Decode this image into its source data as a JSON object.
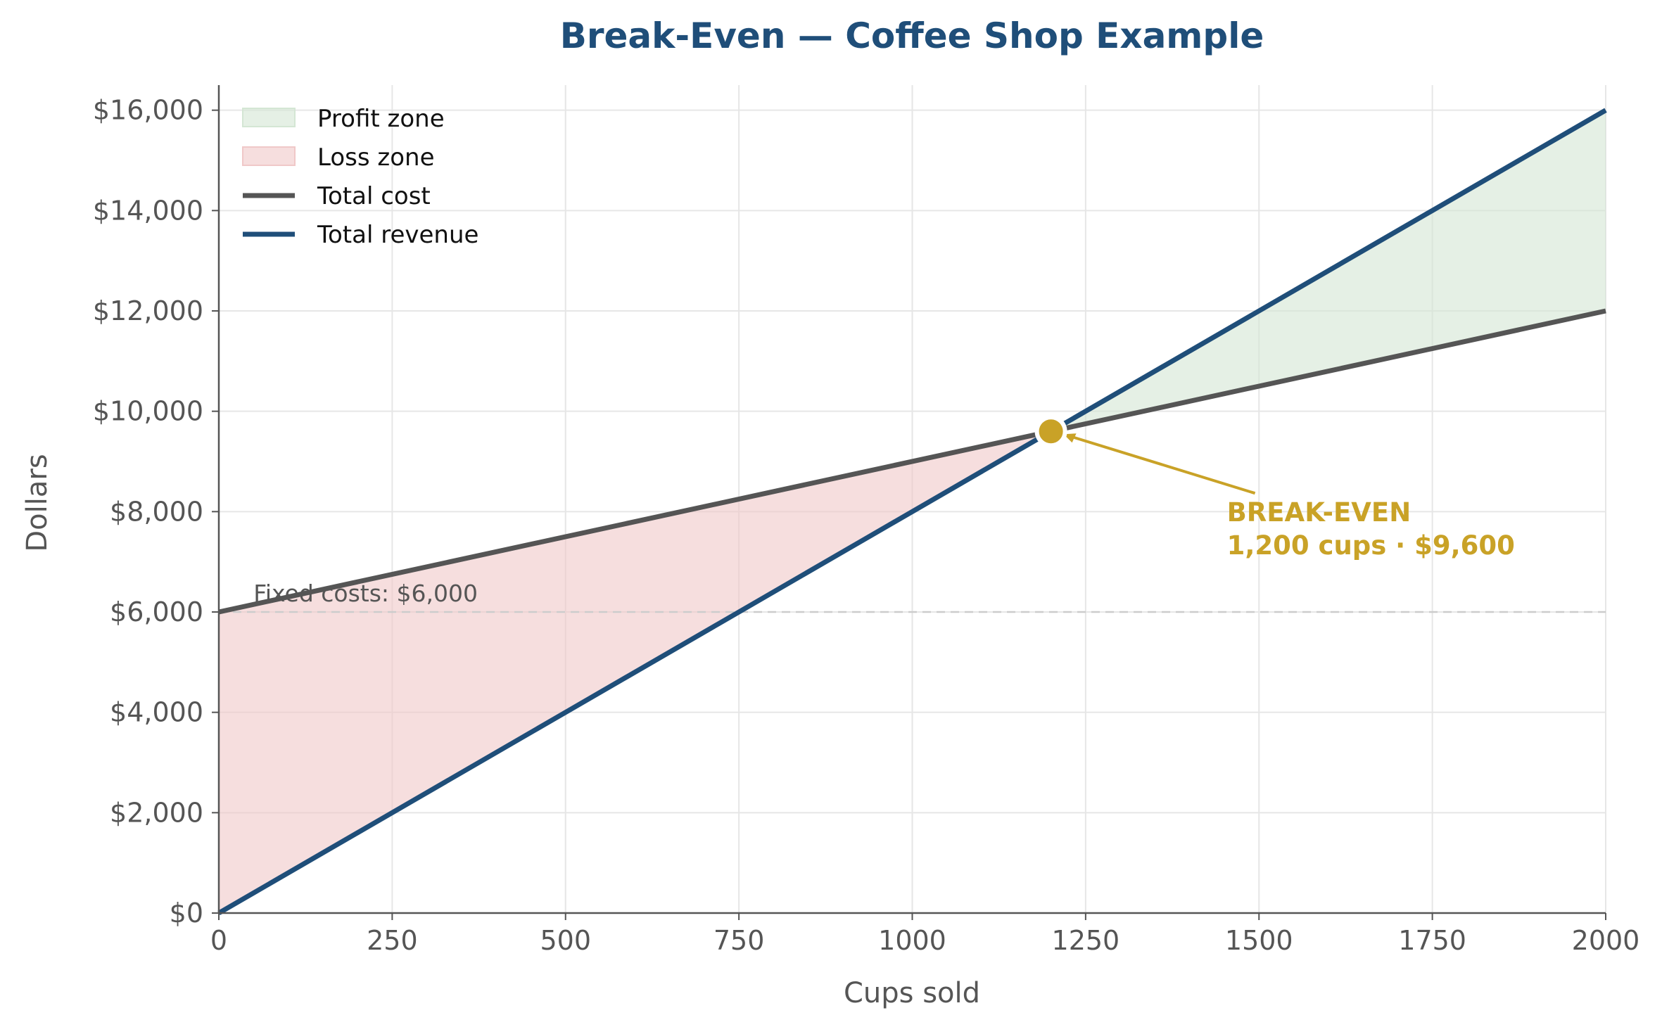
{
  "chart_data": {
    "type": "line",
    "title": "Break-Even — Coffee Shop Example",
    "xlabel": "Cups sold",
    "ylabel": "Dollars",
    "xlim": [
      0,
      2000
    ],
    "ylim": [
      0,
      16500
    ],
    "x_ticks": [
      0,
      250,
      500,
      750,
      1000,
      1250,
      1500,
      1750,
      2000
    ],
    "x_tick_labels": [
      "0",
      "250",
      "500",
      "750",
      "1000",
      "1250",
      "1500",
      "1750",
      "2000"
    ],
    "y_ticks": [
      0,
      2000,
      4000,
      6000,
      8000,
      10000,
      12000,
      14000,
      16000
    ],
    "y_tick_labels": [
      "$0",
      "$2,000",
      "$4,000",
      "$6,000",
      "$8,000",
      "$10,000",
      "$12,000",
      "$14,000",
      "$16,000"
    ],
    "grid": true,
    "legend_position": "top-left",
    "series": [
      {
        "name": "Total cost",
        "color": "#555555",
        "x": [
          0,
          2000
        ],
        "y": [
          6000,
          12000
        ]
      },
      {
        "name": "Total revenue",
        "color": "#1f4e79",
        "x": [
          0,
          2000
        ],
        "y": [
          0,
          16000
        ]
      }
    ],
    "areas": [
      {
        "name": "Profit zone",
        "color": "#d4e6d4",
        "x_range": [
          1200,
          2000
        ]
      },
      {
        "name": "Loss zone",
        "color": "#f0c8c8",
        "x_range": [
          0,
          1200
        ]
      }
    ],
    "reference_line": {
      "y": 6000,
      "label": "Fixed costs: $6,000",
      "color": "#cccccc"
    },
    "break_even": {
      "x": 1200,
      "y": 9600,
      "label_line1": "BREAK-EVEN",
      "label_line2": "1,200 cups · $9,600",
      "color": "#c9a227"
    }
  }
}
